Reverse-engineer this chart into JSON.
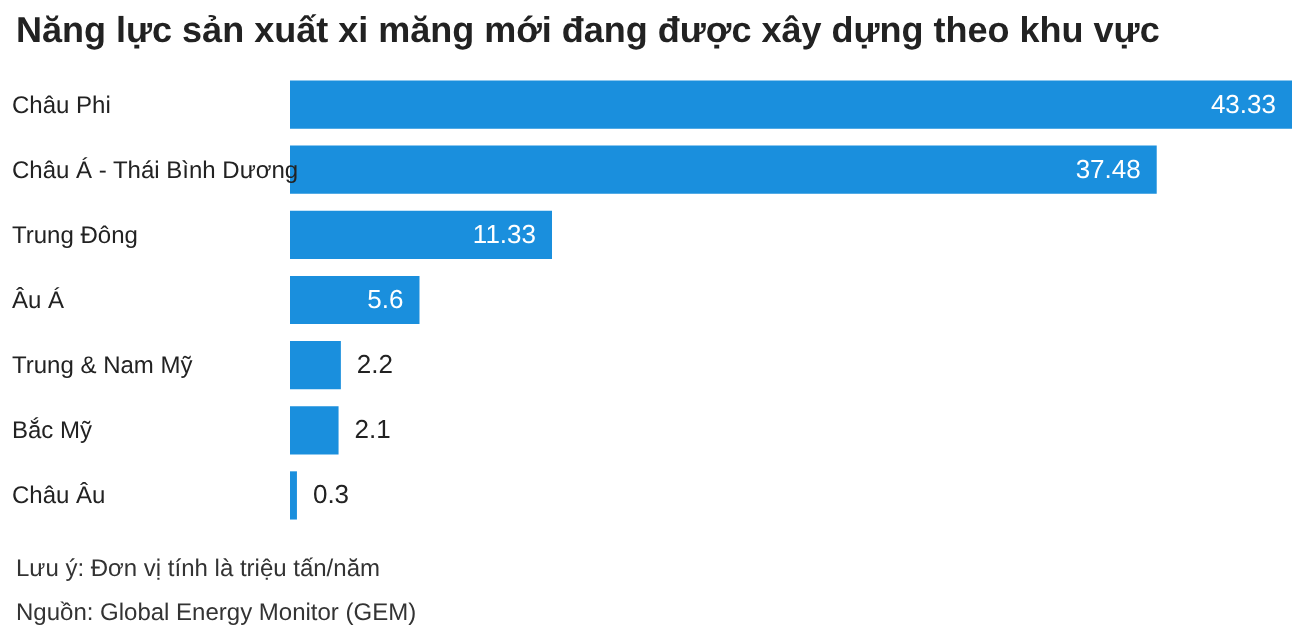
{
  "chart_data": {
    "type": "bar",
    "orientation": "horizontal",
    "title": "Năng lực sản xuất xi măng mới đang được xây dựng theo khu vực",
    "categories": [
      "Châu Phi",
      "Châu Á - Thái Bình Dương",
      "Trung Đông",
      "Âu Á",
      "Trung & Nam Mỹ",
      "Bắc Mỹ",
      "Châu Âu"
    ],
    "values": [
      43.33,
      37.48,
      11.33,
      5.6,
      2.2,
      2.1,
      0.3
    ],
    "color": "#1a8fdd",
    "data_labels": true,
    "annotations": [
      "Lưu ý: Đơn vị tính là triệu tấn/năm",
      "Nguồn: Global Energy Monitor (GEM)"
    ]
  }
}
